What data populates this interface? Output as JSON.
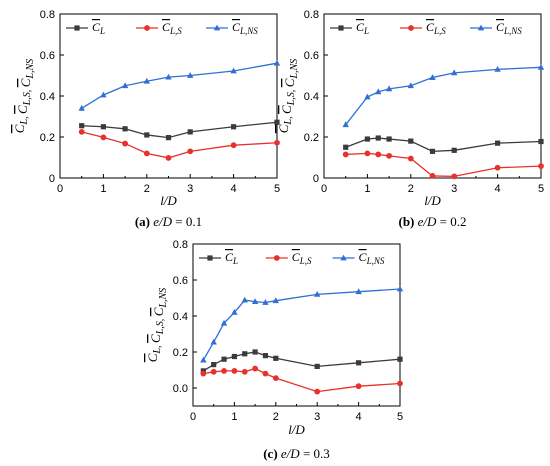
{
  "chart_data": [
    {
      "type": "line",
      "caption": {
        "tag": "(a)",
        "var": "e/D",
        "rest": " = 0.1"
      },
      "xlabel": "l/D",
      "ylabel": "C̄L, C̄L,S, C̄L,NS",
      "xlim": [
        0,
        5
      ],
      "ylim": [
        0,
        0.8
      ],
      "xticks": [
        "0",
        "1",
        "2",
        "3",
        "4",
        "5"
      ],
      "yticks": [
        "0",
        "0.2",
        "0.4",
        "0.6",
        "0.8"
      ],
      "legend": "top",
      "series": [
        {
          "name": "C̄L",
          "marker": "square",
          "color": "#3b3b3b",
          "x": [
            0.5,
            1,
            1.5,
            2,
            2.5,
            3,
            4,
            5
          ],
          "y": [
            0.255,
            0.25,
            0.24,
            0.21,
            0.197,
            0.225,
            0.25,
            0.272
          ]
        },
        {
          "name": "C̄L,S",
          "marker": "circle",
          "color": "#e8302c",
          "x": [
            0.5,
            1,
            1.5,
            2,
            2.5,
            3,
            4,
            5
          ],
          "y": [
            0.225,
            0.198,
            0.168,
            0.12,
            0.098,
            0.13,
            0.16,
            0.172
          ]
        },
        {
          "name": "C̄L,NS",
          "marker": "triangle",
          "color": "#2f6fd6",
          "x": [
            0.5,
            1,
            1.5,
            2,
            2.5,
            3,
            4,
            5
          ],
          "y": [
            0.34,
            0.405,
            0.45,
            0.472,
            0.492,
            0.5,
            0.522,
            0.56
          ]
        }
      ]
    },
    {
      "type": "line",
      "caption": {
        "tag": "(b)",
        "var": "e/D",
        "rest": " = 0.2"
      },
      "xlabel": "l/D",
      "ylabel": "C̄L, C̄L,S, C̄L,NS",
      "xlim": [
        0,
        5
      ],
      "ylim": [
        0,
        0.8
      ],
      "xticks": [
        "0",
        "1",
        "2",
        "3",
        "4",
        "5"
      ],
      "yticks": [
        "0",
        "0.2",
        "0.4",
        "0.6",
        "0.8"
      ],
      "legend": "top",
      "series": [
        {
          "name": "C̄L",
          "marker": "square",
          "color": "#3b3b3b",
          "x": [
            0.5,
            1,
            1.25,
            1.5,
            2,
            2.5,
            3,
            4,
            5
          ],
          "y": [
            0.15,
            0.19,
            0.195,
            0.19,
            0.18,
            0.13,
            0.135,
            0.17,
            0.178
          ]
        },
        {
          "name": "C̄L,S",
          "marker": "circle",
          "color": "#e8302c",
          "x": [
            0.5,
            1,
            1.25,
            1.5,
            2,
            2.5,
            3,
            4,
            5
          ],
          "y": [
            0.115,
            0.12,
            0.115,
            0.108,
            0.095,
            0.01,
            0.008,
            0.05,
            0.058
          ]
        },
        {
          "name": "C̄L,NS",
          "marker": "triangle",
          "color": "#2f6fd6",
          "x": [
            0.5,
            1,
            1.25,
            1.5,
            2,
            2.5,
            3,
            4,
            5
          ],
          "y": [
            0.26,
            0.395,
            0.42,
            0.435,
            0.45,
            0.49,
            0.513,
            0.53,
            0.54
          ]
        }
      ]
    },
    {
      "type": "line",
      "caption": {
        "tag": "(c)",
        "var": "e/D",
        "rest": " = 0.3"
      },
      "xlabel": "l/D",
      "ylabel": "C̄L, C̄L,S, C̄L,NS",
      "xlim": [
        0,
        5
      ],
      "ylim": [
        -0.1,
        0.8
      ],
      "xticks": [
        "0",
        "1",
        "2",
        "3",
        "4",
        "5"
      ],
      "yticks": [
        "0.0",
        "0.2",
        "0.4",
        "0.6",
        "0.8"
      ],
      "legend": "top",
      "series": [
        {
          "name": "C̄L",
          "marker": "square",
          "color": "#3b3b3b",
          "x": [
            0.25,
            0.5,
            0.75,
            1,
            1.25,
            1.5,
            1.75,
            2,
            3,
            4,
            5
          ],
          "y": [
            0.095,
            0.13,
            0.16,
            0.175,
            0.19,
            0.2,
            0.18,
            0.165,
            0.12,
            0.14,
            0.16
          ]
        },
        {
          "name": "C̄L,S",
          "marker": "circle",
          "color": "#e8302c",
          "x": [
            0.25,
            0.5,
            0.75,
            1,
            1.25,
            1.5,
            1.75,
            2,
            3,
            4,
            5
          ],
          "y": [
            0.08,
            0.09,
            0.095,
            0.095,
            0.09,
            0.108,
            0.08,
            0.055,
            -0.02,
            0.01,
            0.025
          ]
        },
        {
          "name": "C̄L,NS",
          "marker": "triangle",
          "color": "#2f6fd6",
          "x": [
            0.25,
            0.5,
            0.75,
            1,
            1.25,
            1.5,
            1.75,
            2,
            3,
            4,
            5
          ],
          "y": [
            0.155,
            0.255,
            0.36,
            0.42,
            0.488,
            0.48,
            0.475,
            0.485,
            0.52,
            0.535,
            0.55
          ]
        }
      ]
    }
  ]
}
